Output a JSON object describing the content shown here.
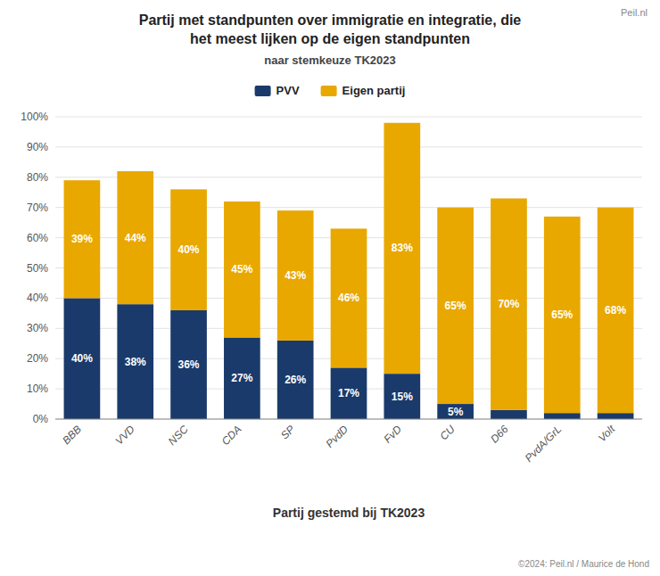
{
  "chart_data": {
    "type": "bar",
    "stacked": true,
    "title": [
      "Partij met standpunten over immigratie en integratie, die",
      "het meest lijken op de eigen standpunten"
    ],
    "subtitle": "naar stemkeuze TK2023",
    "x_label": "Partij gestemd bij TK2023",
    "annotations": [
      "©2024: Peil.nl / Maurice de Hond",
      "Peil.nl"
    ],
    "categories": [
      "BBB",
      "VVD",
      "NSC",
      "CDA",
      "SP",
      "PvdD",
      "FvD",
      "CU",
      "D66",
      "PvdA/GrL",
      "Volt"
    ],
    "series": [
      {
        "name": "PVV",
        "color": "#1a3a6b",
        "values": [
          40,
          38,
          36,
          27,
          26,
          17,
          15,
          5,
          3,
          2,
          2
        ],
        "value_labels": [
          "40%",
          "38%",
          "36%",
          "27%",
          "26%",
          "17%",
          "15%",
          "5%",
          null,
          null,
          null
        ]
      },
      {
        "name": "Eigen partij",
        "color": "#e8a800",
        "values": [
          39,
          44,
          40,
          45,
          43,
          46,
          83,
          65,
          70,
          65,
          68
        ],
        "value_labels": [
          "39%",
          "44%",
          "40%",
          "45%",
          "43%",
          "46%",
          "83%",
          "65%",
          "70%",
          "65%",
          "68%"
        ]
      }
    ],
    "ylim": [
      0,
      100
    ],
    "yticks": [
      {
        "value": 0,
        "label": "0%"
      },
      {
        "value": 10,
        "label": "10%"
      },
      {
        "value": 20,
        "label": "20%"
      },
      {
        "value": 30,
        "label": "30%"
      },
      {
        "value": 40,
        "label": "40%"
      },
      {
        "value": 50,
        "label": "50%"
      },
      {
        "value": 60,
        "label": "60%"
      },
      {
        "value": 70,
        "label": "70%"
      },
      {
        "value": 80,
        "label": "80%"
      },
      {
        "value": 90,
        "label": "90%"
      },
      {
        "value": 100,
        "label": "100%"
      }
    ],
    "grid": true,
    "data_labels": true,
    "legend": "top"
  }
}
